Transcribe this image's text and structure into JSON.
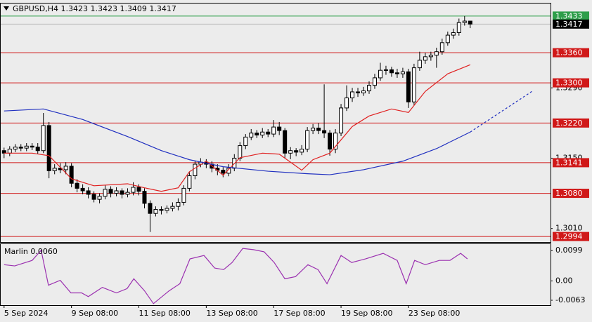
{
  "chart_data": {
    "type": "candlestick",
    "title": "GBPUSD,H4  1.3423 1.3423 1.3409 1.3417",
    "xlim": [
      -0.6,
      97.3
    ],
    "xticks": [
      {
        "value": 0,
        "label": "5 Sep 2024"
      },
      {
        "value": 12,
        "label": "9 Sep 08:00"
      },
      {
        "value": 24,
        "label": "11 Sep 08:00"
      },
      {
        "value": 36,
        "label": "13 Sep 08:00"
      },
      {
        "value": 48,
        "label": "17 Sep 08:00"
      },
      {
        "value": 60,
        "label": "19 Sep 08:00"
      },
      {
        "value": 72,
        "label": "23 Sep 08:00"
      }
    ],
    "ylim": [
      1.2983,
      1.3458
    ],
    "yticks": [
      {
        "value": 1.301,
        "label": "1.3010"
      },
      {
        "value": 1.315,
        "label": "1.3150"
      },
      {
        "value": 1.329,
        "label": "1.3290"
      }
    ],
    "up_color": "#ffffff",
    "down_color": "#000000",
    "open": [
      1.3165,
      1.316,
      1.3168,
      1.3172,
      1.317,
      1.3174,
      1.3172,
      1.3165,
      1.3215,
      1.3125,
      1.313,
      1.3127,
      1.3134,
      1.31,
      1.309,
      1.3085,
      1.3078,
      1.3068,
      1.3074,
      1.3088,
      1.308,
      1.3085,
      1.3078,
      1.3082,
      1.3092,
      1.3084,
      1.306,
      1.304,
      1.3048,
      1.3046,
      1.305,
      1.3054,
      1.3062,
      1.309,
      1.3115,
      1.3138,
      1.3142,
      1.3138,
      1.313,
      1.3126,
      1.312,
      1.313,
      1.315,
      1.3175,
      1.3192,
      1.32,
      1.3196,
      1.3202,
      1.3198,
      1.3212,
      1.3205,
      1.316,
      1.3165,
      1.3162,
      1.3168,
      1.3205,
      1.321,
      1.3205,
      1.32,
      1.3168,
      1.32,
      1.325,
      1.327,
      1.3282,
      1.328,
      1.3284,
      1.3295,
      1.331,
      1.3325,
      1.3326,
      1.332,
      1.3318,
      1.3322,
      1.3262,
      1.333,
      1.3345,
      1.3352,
      1.3355,
      1.3362,
      1.338,
      1.3395,
      1.34,
      1.342,
      1.3423
    ],
    "high": [
      1.3171,
      1.3174,
      1.3178,
      1.3178,
      1.318,
      1.318,
      1.318,
      1.324,
      1.3222,
      1.3138,
      1.314,
      1.3142,
      1.314,
      1.3108,
      1.3098,
      1.3092,
      1.3084,
      1.308,
      1.3096,
      1.3094,
      1.3092,
      1.309,
      1.309,
      1.3102,
      1.3098,
      1.309,
      1.3066,
      1.3054,
      1.3054,
      1.3056,
      1.3062,
      1.307,
      1.3096,
      1.3122,
      1.3145,
      1.315,
      1.3148,
      1.3144,
      1.3138,
      1.3132,
      1.3138,
      1.3158,
      1.3182,
      1.3198,
      1.3208,
      1.3206,
      1.321,
      1.3208,
      1.3226,
      1.3222,
      1.321,
      1.3172,
      1.317,
      1.3176,
      1.3212,
      1.3218,
      1.322,
      1.3297,
      1.3206,
      1.3208,
      1.3258,
      1.3295,
      1.329,
      1.329,
      1.3292,
      1.3303,
      1.3318,
      1.334,
      1.3334,
      1.3332,
      1.3328,
      1.333,
      1.3328,
      1.3338,
      1.3362,
      1.336,
      1.3362,
      1.337,
      1.3388,
      1.3402,
      1.3408,
      1.3428,
      1.3433,
      1.3423
    ],
    "low": [
      1.315,
      1.3154,
      1.3162,
      1.3164,
      1.3164,
      1.3166,
      1.3158,
      1.316,
      1.311,
      1.3118,
      1.312,
      1.3118,
      1.3092,
      1.3082,
      1.3078,
      1.307,
      1.3062,
      1.306,
      1.3068,
      1.3072,
      1.3074,
      1.307,
      1.3072,
      1.3076,
      1.3076,
      1.305,
      1.3003,
      1.3034,
      1.3038,
      1.304,
      1.3044,
      1.3046,
      1.3056,
      1.3084,
      1.3108,
      1.3132,
      1.313,
      1.3122,
      1.3116,
      1.3112,
      1.3114,
      1.3124,
      1.3144,
      1.3168,
      1.3186,
      1.319,
      1.319,
      1.3192,
      1.3192,
      1.3196,
      1.315,
      1.3148,
      1.3154,
      1.3156,
      1.3162,
      1.3198,
      1.3198,
      1.319,
      1.3155,
      1.316,
      1.3194,
      1.3244,
      1.3262,
      1.3272,
      1.3274,
      1.3278,
      1.3288,
      1.3304,
      1.3316,
      1.3312,
      1.331,
      1.331,
      1.325,
      1.3256,
      1.3324,
      1.3338,
      1.3344,
      1.333,
      1.3356,
      1.3374,
      1.3388,
      1.3394,
      1.3414,
      1.3409
    ],
    "close": [
      1.316,
      1.3168,
      1.3172,
      1.317,
      1.3174,
      1.3172,
      1.3165,
      1.3215,
      1.3125,
      1.313,
      1.3127,
      1.3134,
      1.31,
      1.309,
      1.3085,
      1.3078,
      1.3068,
      1.3074,
      1.3088,
      1.308,
      1.3085,
      1.3078,
      1.3082,
      1.3092,
      1.3084,
      1.306,
      1.304,
      1.3048,
      1.3046,
      1.305,
      1.3054,
      1.3062,
      1.309,
      1.3115,
      1.3138,
      1.3142,
      1.3138,
      1.313,
      1.3126,
      1.312,
      1.313,
      1.315,
      1.3175,
      1.3192,
      1.32,
      1.3196,
      1.3202,
      1.3198,
      1.3212,
      1.3205,
      1.316,
      1.3165,
      1.3162,
      1.3168,
      1.3205,
      1.321,
      1.3205,
      1.32,
      1.3168,
      1.32,
      1.325,
      1.327,
      1.3282,
      1.328,
      1.3284,
      1.3295,
      1.331,
      1.3325,
      1.3326,
      1.332,
      1.3318,
      1.3322,
      1.3262,
      1.333,
      1.3345,
      1.3352,
      1.3355,
      1.3362,
      1.338,
      1.3395,
      1.34,
      1.342,
      1.3423,
      1.3417
    ],
    "series": [
      {
        "color": "#e02020",
        "style": "solid",
        "x": [
          0,
          5,
          8,
          12,
          16,
          22,
          25,
          28,
          31,
          33,
          36,
          39,
          42,
          46,
          49,
          53,
          55,
          58,
          62,
          65,
          69,
          72,
          75,
          79,
          83
        ],
        "values": [
          1.316,
          1.316,
          1.3155,
          1.3109,
          1.3095,
          1.3099,
          1.3091,
          1.3084,
          1.3091,
          1.3123,
          1.3144,
          1.3116,
          1.3151,
          1.316,
          1.3158,
          1.3126,
          1.3147,
          1.316,
          1.3213,
          1.3234,
          1.3248,
          1.3241,
          1.3283,
          1.3318,
          1.3336
        ]
      },
      {
        "color": "#2030c0",
        "style": "solid",
        "x": [
          0,
          7,
          14,
          22,
          28,
          33,
          39,
          47,
          54,
          58,
          64,
          71,
          77,
          83
        ],
        "values": [
          1.3244,
          1.3248,
          1.3227,
          1.3193,
          1.3165,
          1.3147,
          1.3133,
          1.3124,
          1.3119,
          1.3117,
          1.3127,
          1.3144,
          1.3169,
          1.3202
        ]
      },
      {
        "color": "#2030c0",
        "style": "dashed",
        "x": [
          83,
          94
        ],
        "values": [
          1.3202,
          1.3283
        ]
      }
    ],
    "levels": [
      {
        "value": 1.3433,
        "color": "#2e9e4a"
      },
      {
        "value": 1.3417,
        "color": "#000000",
        "line_color": "#b8b8b8"
      },
      {
        "value": 1.336,
        "label": "1.3360",
        "color": "#d01818"
      },
      {
        "value": 1.33,
        "label": "1.3300",
        "color": "#d01818"
      },
      {
        "value": 1.322,
        "label": "1.3220",
        "color": "#d01818"
      },
      {
        "value": 1.3141,
        "color": "#d01818"
      },
      {
        "value": 1.308,
        "label": "1.3080",
        "color": "#d01818"
      },
      {
        "value": 1.2994,
        "color": "#d01818"
      }
    ],
    "indicator": {
      "type": "line",
      "title": "Marlin 0.0060",
      "color": "#9b30b0",
      "ylim": [
        -0.0079,
        0.012
      ],
      "yticks": [
        -0.0063,
        {
          "value": 0,
          "label": "0.00"
        },
        0.0099
      ],
      "x": [
        0,
        1.9,
        5,
        6.6,
        7.9,
        10,
        11.9,
        13.8,
        15,
        17.5,
        20,
        21.9,
        23.1,
        25,
        26.6,
        29.4,
        31.3,
        33.1,
        35.6,
        37.5,
        39.1,
        40.6,
        42.5,
        44.4,
        46.3,
        48.1,
        50,
        51.9,
        54.1,
        55.9,
        57.5,
        60,
        61.9,
        64.4,
        67.5,
        70,
        71.6,
        73.1,
        75,
        77.5,
        79.4,
        81.3,
        82.5
      ],
      "values": [
        0.0053,
        0.0049,
        0.0067,
        0.01,
        -0.0014,
        0.0002,
        -0.0039,
        -0.0039,
        -0.0051,
        -0.0021,
        -0.0039,
        -0.0025,
        0.0007,
        -0.0032,
        -0.0074,
        -0.0032,
        -0.0009,
        0.0072,
        0.0083,
        0.0042,
        0.0037,
        0.006,
        0.0106,
        0.0102,
        0.0095,
        0.006,
        0.0007,
        0.0014,
        0.0053,
        0.0037,
        -0.0009,
        0.0083,
        0.006,
        0.0072,
        0.009,
        0.0067,
        -0.0009,
        0.0067,
        0.0053,
        0.0067,
        0.0067,
        0.009,
        0.0072
      ]
    }
  }
}
